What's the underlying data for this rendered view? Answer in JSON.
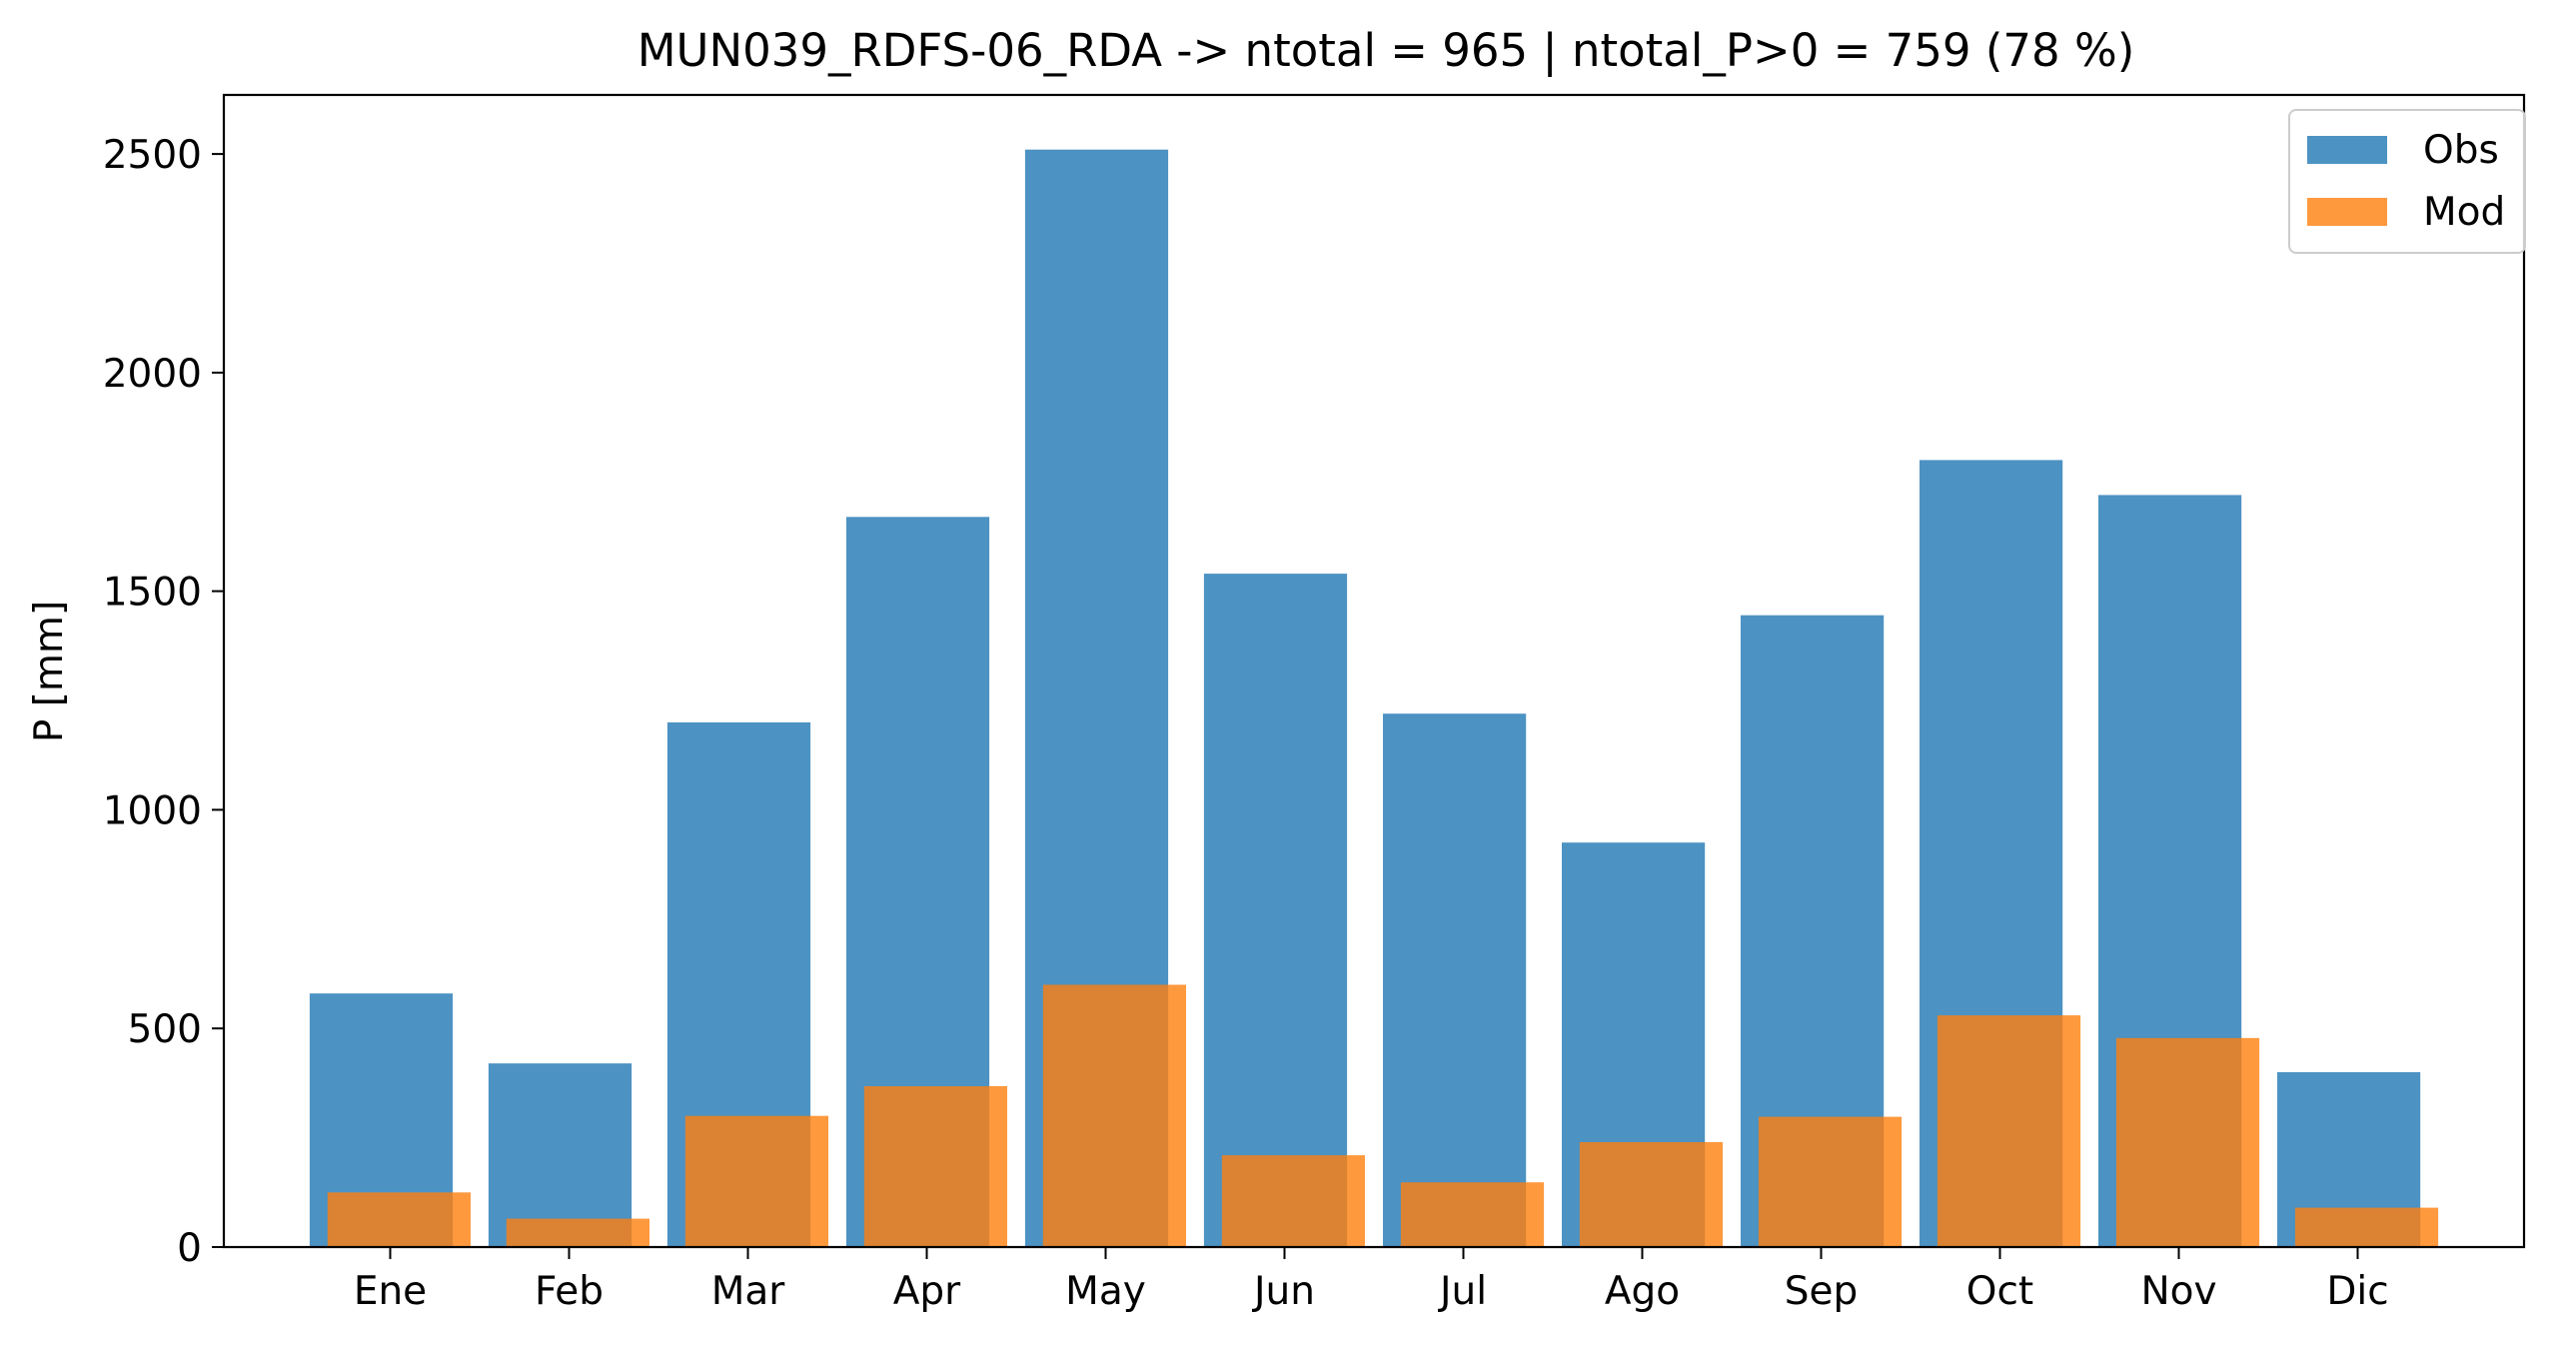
{
  "chart_data": {
    "type": "bar",
    "title": "MUN039_RDFS-06_RDA -> ntotal = 965 | ntotal_P>0 = 759 (78 %)",
    "xlabel": "",
    "ylabel": "P [mm]",
    "categories": [
      "Ene",
      "Feb",
      "Mar",
      "Apr",
      "May",
      "Jun",
      "Jul",
      "Ago",
      "Sep",
      "Oct",
      "Nov",
      "Dic"
    ],
    "series": [
      {
        "name": "Obs",
        "color": "#1f77b4",
        "opacity": 0.8,
        "values": [
          580,
          420,
          1200,
          1670,
          2510,
          1540,
          1220,
          925,
          1445,
          1800,
          1720,
          400
        ]
      },
      {
        "name": "Mod",
        "color": "#ff7f0e",
        "opacity": 0.8,
        "values": [
          125,
          65,
          300,
          368,
          600,
          210,
          148,
          240,
          298,
          530,
          478,
          90
        ]
      }
    ],
    "yticks": [
      0,
      500,
      1000,
      1500,
      2000,
      2500
    ],
    "ylim": [
      0,
      2635
    ],
    "grid": false,
    "legend_position": "top-right"
  }
}
